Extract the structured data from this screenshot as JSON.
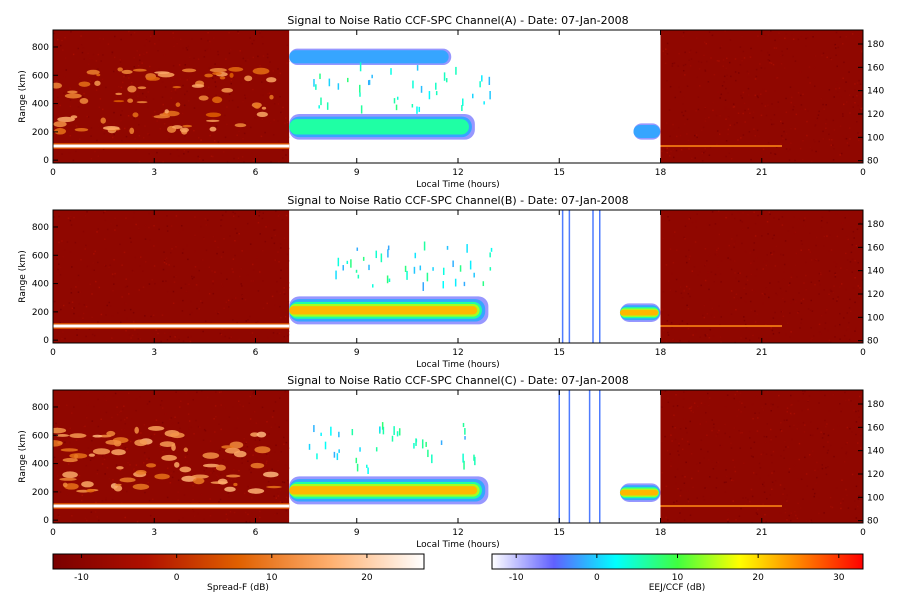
{
  "panels": [
    {
      "id": "A",
      "title": "Signal to Noise Ratio CCF-SPC Channel(A) - Date: 07-Jan-2008",
      "xlabel": "Local Time (hours)",
      "ylabel": "Range (km)",
      "x_ticks": [
        "0",
        "3",
        "6",
        "9",
        "12",
        "15",
        "18",
        "21",
        "0"
      ],
      "y_ticks": [
        "0",
        "200",
        "400",
        "600",
        "800"
      ],
      "y2_ticks": [
        "80",
        "100",
        "120",
        "140",
        "160",
        "180"
      ]
    },
    {
      "id": "B",
      "title": "Signal to Noise Ratio CCF-SPC Channel(B) - Date: 07-Jan-2008",
      "xlabel": "Local Time (hours)",
      "ylabel": "Range (km)",
      "x_ticks": [
        "0",
        "3",
        "6",
        "9",
        "12",
        "15",
        "18",
        "21",
        "0"
      ],
      "y_ticks": [
        "0",
        "200",
        "400",
        "600",
        "800"
      ],
      "y2_ticks": [
        "80",
        "100",
        "120",
        "140",
        "160",
        "180"
      ]
    },
    {
      "id": "C",
      "title": "Signal to Noise Ratio CCF-SPC Channel(C) - Date: 07-Jan-2008",
      "xlabel": "Local Time (hours)",
      "ylabel": "Range (km)",
      "x_ticks": [
        "0",
        "3",
        "6",
        "9",
        "12",
        "15",
        "18",
        "21",
        "0"
      ],
      "y_ticks": [
        "0",
        "200",
        "400",
        "600",
        "800"
      ],
      "y2_ticks": [
        "80",
        "100",
        "120",
        "140",
        "160",
        "180"
      ]
    }
  ],
  "colorbars": {
    "spread_f": {
      "label": "Spread-F (dB)",
      "ticks": [
        "-10",
        "0",
        "10",
        "20"
      ],
      "range": [
        -13,
        26
      ],
      "colors": [
        "#7a0000",
        "#b01000",
        "#e06000",
        "#ffb070",
        "#ffffff"
      ]
    },
    "eej": {
      "label": "EEJ/CCF (dB)",
      "ticks": [
        "-10",
        "0",
        "10",
        "20",
        "30"
      ],
      "range": [
        -13,
        33
      ],
      "colors": [
        "#ffffff",
        "#6060ff",
        "#00ffff",
        "#40ff40",
        "#ffff00",
        "#ff8000",
        "#ff0000"
      ]
    }
  },
  "chart_data": [
    {
      "type": "heatmap",
      "title": "Signal to Noise Ratio CCF-SPC Channel(A) - Date: 07-Jan-2008",
      "xlabel": "Local Time (hours)",
      "ylabel": "Range (km)",
      "x_range": [
        0,
        24
      ],
      "y_range": [
        -20,
        920
      ],
      "y2_range": [
        78,
        192
      ],
      "spread_f_segments": [
        [
          0,
          7
        ],
        [
          18,
          24
        ]
      ],
      "eej_segment": [
        7,
        18
      ],
      "features": [
        {
          "kind": "spread_f_layer",
          "x": [
            0,
            7
          ],
          "range_km": 100,
          "snr_db": 26
        },
        {
          "kind": "spread_f_plumes",
          "x": [
            0,
            6.6
          ],
          "range_km": [
            200,
            650
          ],
          "snr_db": 12
        },
        {
          "kind": "eej_echo",
          "x": [
            7,
            11.8
          ],
          "alt_km": [
            162,
            176
          ],
          "snr_db": -2
        },
        {
          "kind": "eej_echo",
          "x": [
            7,
            12.5
          ],
          "alt_km": [
            98,
            120
          ],
          "snr_db": 8
        },
        {
          "kind": "eej_echo",
          "x": [
            17.2,
            18
          ],
          "alt_km": [
            98,
            112
          ],
          "snr_db": 3
        }
      ]
    },
    {
      "type": "heatmap",
      "title": "Signal to Noise Ratio CCF-SPC Channel(B) - Date: 07-Jan-2008",
      "xlabel": "Local Time (hours)",
      "ylabel": "Range (km)",
      "x_range": [
        0,
        24
      ],
      "y_range": [
        -20,
        920
      ],
      "y2_range": [
        78,
        192
      ],
      "spread_f_segments": [
        [
          0,
          7
        ],
        [
          18,
          24
        ]
      ],
      "eej_segment": [
        7,
        18
      ],
      "features": [
        {
          "kind": "spread_f_layer",
          "x": [
            0,
            7
          ],
          "range_km": 100,
          "snr_db": 26
        },
        {
          "kind": "eej_echo",
          "x": [
            7,
            12.9
          ],
          "alt_km": [
            94,
            118
          ],
          "snr_db": 30
        },
        {
          "kind": "eej_echo",
          "x": [
            16.8,
            18
          ],
          "alt_km": [
            96,
            112
          ],
          "snr_db": 30
        },
        {
          "kind": "interference_line",
          "x": [
            15.1,
            15.3,
            16,
            16.2
          ]
        }
      ]
    },
    {
      "type": "heatmap",
      "title": "Signal to Noise Ratio CCF-SPC Channel(C) - Date: 07-Jan-2008",
      "xlabel": "Local Time (hours)",
      "ylabel": "Range (km)",
      "x_range": [
        0,
        24
      ],
      "y_range": [
        -20,
        920
      ],
      "y2_range": [
        78,
        192
      ],
      "spread_f_segments": [
        [
          0,
          7
        ],
        [
          18,
          24
        ]
      ],
      "eej_segment": [
        7,
        18
      ],
      "features": [
        {
          "kind": "spread_f_layer",
          "x": [
            0,
            7
          ],
          "range_km": 100,
          "snr_db": 26
        },
        {
          "kind": "spread_f_plumes",
          "x": [
            0,
            6.6
          ],
          "range_km": [
            200,
            650
          ],
          "snr_db": 14
        },
        {
          "kind": "eej_echo",
          "x": [
            7,
            12.9
          ],
          "alt_km": [
            94,
            118
          ],
          "snr_db": 30
        },
        {
          "kind": "eej_echo",
          "x": [
            16.8,
            18
          ],
          "alt_km": [
            96,
            112
          ],
          "snr_db": 30
        },
        {
          "kind": "interference_line",
          "x": [
            15,
            15.3,
            15.9,
            16.2
          ]
        }
      ]
    }
  ]
}
